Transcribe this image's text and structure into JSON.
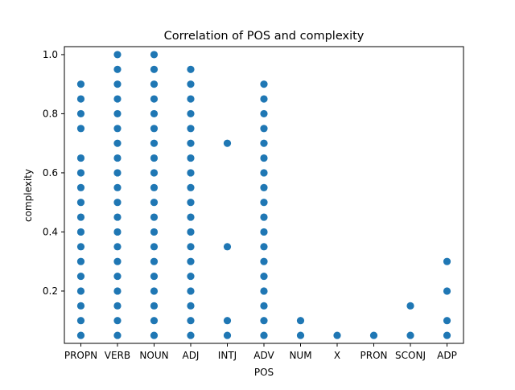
{
  "chart_data": {
    "type": "scatter",
    "title": "Correlation of POS and complexity",
    "xlabel": "POS",
    "ylabel": "complexity",
    "categories": [
      "PROPN",
      "VERB",
      "NOUN",
      "ADJ",
      "INTJ",
      "ADV",
      "NUM",
      "X",
      "PRON",
      "SCONJ",
      "ADP"
    ],
    "yticks": [
      {
        "value": 0.2,
        "label": "0.2"
      },
      {
        "value": 0.4,
        "label": "0.4"
      },
      {
        "value": 0.6,
        "label": "0.6"
      },
      {
        "value": 0.8,
        "label": "0.8"
      },
      {
        "value": 1.0,
        "label": "1.0"
      }
    ],
    "ylim": [
      0.023,
      1.027
    ],
    "grid": false,
    "marker_color": "#1f77b4",
    "points_by_category": {
      "PROPN": [
        0.05,
        0.1,
        0.15,
        0.2,
        0.25,
        0.3,
        0.35,
        0.4,
        0.45,
        0.5,
        0.55,
        0.6,
        0.65,
        0.75,
        0.8,
        0.85,
        0.9
      ],
      "VERB": [
        0.05,
        0.1,
        0.15,
        0.2,
        0.25,
        0.3,
        0.35,
        0.4,
        0.45,
        0.5,
        0.55,
        0.6,
        0.65,
        0.7,
        0.75,
        0.8,
        0.85,
        0.9,
        0.95,
        1.0
      ],
      "NOUN": [
        0.05,
        0.1,
        0.15,
        0.2,
        0.25,
        0.3,
        0.35,
        0.4,
        0.45,
        0.5,
        0.55,
        0.6,
        0.65,
        0.7,
        0.75,
        0.8,
        0.85,
        0.9,
        0.95,
        1.0
      ],
      "ADJ": [
        0.05,
        0.1,
        0.15,
        0.2,
        0.25,
        0.3,
        0.35,
        0.4,
        0.45,
        0.5,
        0.55,
        0.6,
        0.65,
        0.7,
        0.75,
        0.8,
        0.85,
        0.9,
        0.95
      ],
      "INTJ": [
        0.05,
        0.1,
        0.35,
        0.7
      ],
      "ADV": [
        0.05,
        0.1,
        0.15,
        0.2,
        0.25,
        0.3,
        0.35,
        0.4,
        0.45,
        0.5,
        0.55,
        0.6,
        0.65,
        0.7,
        0.75,
        0.8,
        0.85,
        0.9
      ],
      "NUM": [
        0.05,
        0.1
      ],
      "X": [
        0.05
      ],
      "PRON": [
        0.05
      ],
      "SCONJ": [
        0.05,
        0.15
      ],
      "ADP": [
        0.05,
        0.1,
        0.2,
        0.3
      ]
    }
  }
}
